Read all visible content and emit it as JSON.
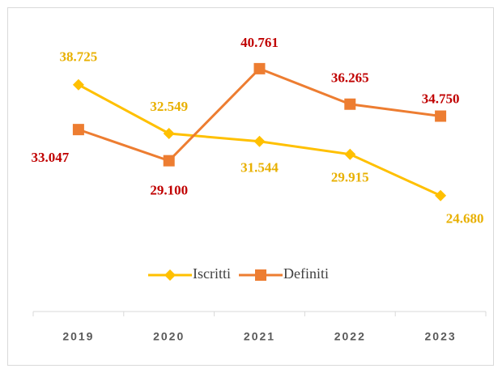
{
  "chart_data": {
    "type": "line",
    "categories": [
      "2019",
      "2020",
      "2021",
      "2022",
      "2023"
    ],
    "series": [
      {
        "name": "Iscritti",
        "color": "#ffc000",
        "label_color": "#e8b000",
        "values": [
          38725,
          32549,
          31544,
          29915,
          24680
        ],
        "value_labels": [
          "38.725",
          "32.549",
          "31.544",
          "29.915",
          "24.680"
        ]
      },
      {
        "name": "Definiti",
        "color": "#ed7d31",
        "label_color": "#c00000",
        "values": [
          33047,
          29100,
          40761,
          36265,
          34750
        ],
        "value_labels": [
          "33.047",
          "29.100",
          "40.761",
          "36.265",
          "34.750"
        ]
      }
    ],
    "ylim": [
      10000,
      47000
    ],
    "legend": "bottom"
  }
}
